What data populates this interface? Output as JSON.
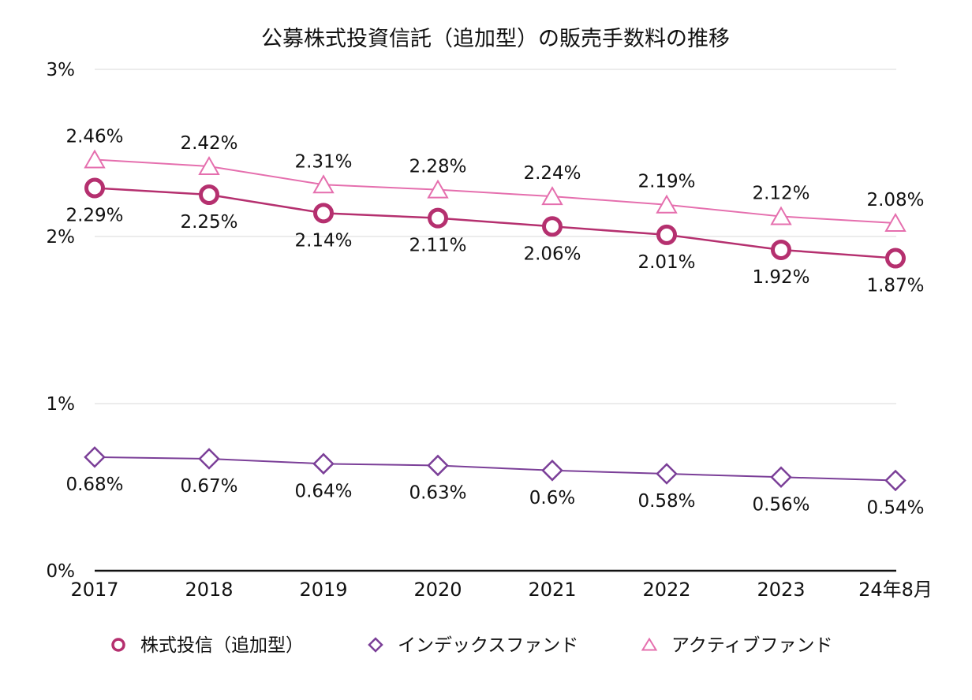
{
  "chart_data": {
    "type": "line",
    "title": "公募株式投資信託（追加型）の販売手数料の推移",
    "xlabel": "",
    "ylabel": "",
    "categories": [
      "2017",
      "2018",
      "2019",
      "2020",
      "2021",
      "2022",
      "2023",
      "24年8月"
    ],
    "ylim": [
      0,
      3
    ],
    "yticks": [
      {
        "value": 0,
        "label": "0%"
      },
      {
        "value": 1,
        "label": "1%"
      },
      {
        "value": 2,
        "label": "2%"
      },
      {
        "value": 3,
        "label": "3%"
      }
    ],
    "grid": true,
    "legend_position": "bottom",
    "series": [
      {
        "name": "株式投信（追加型）",
        "marker": "circle",
        "color": "#b5306f",
        "label_position": "below",
        "values": [
          2.29,
          2.25,
          2.14,
          2.11,
          2.06,
          2.01,
          1.92,
          1.87
        ],
        "labels": [
          "2.29%",
          "2.25%",
          "2.14%",
          "2.11%",
          "2.06%",
          "2.01%",
          "1.92%",
          "1.87%"
        ]
      },
      {
        "name": "インデックスファンド",
        "marker": "diamond",
        "color": "#7b3f98",
        "label_position": "below",
        "values": [
          0.68,
          0.67,
          0.64,
          0.63,
          0.6,
          0.58,
          0.56,
          0.54
        ],
        "labels": [
          "0.68%",
          "0.67%",
          "0.64%",
          "0.63%",
          "0.6%",
          "0.58%",
          "0.56%",
          "0.54%"
        ]
      },
      {
        "name": "アクティブファンド",
        "marker": "triangle",
        "color": "#e56fae",
        "label_position": "above",
        "values": [
          2.46,
          2.42,
          2.31,
          2.28,
          2.24,
          2.19,
          2.12,
          2.08
        ],
        "labels": [
          "2.46%",
          "2.42%",
          "2.31%",
          "2.28%",
          "2.24%",
          "2.19%",
          "2.12%",
          "2.08%"
        ]
      }
    ]
  }
}
